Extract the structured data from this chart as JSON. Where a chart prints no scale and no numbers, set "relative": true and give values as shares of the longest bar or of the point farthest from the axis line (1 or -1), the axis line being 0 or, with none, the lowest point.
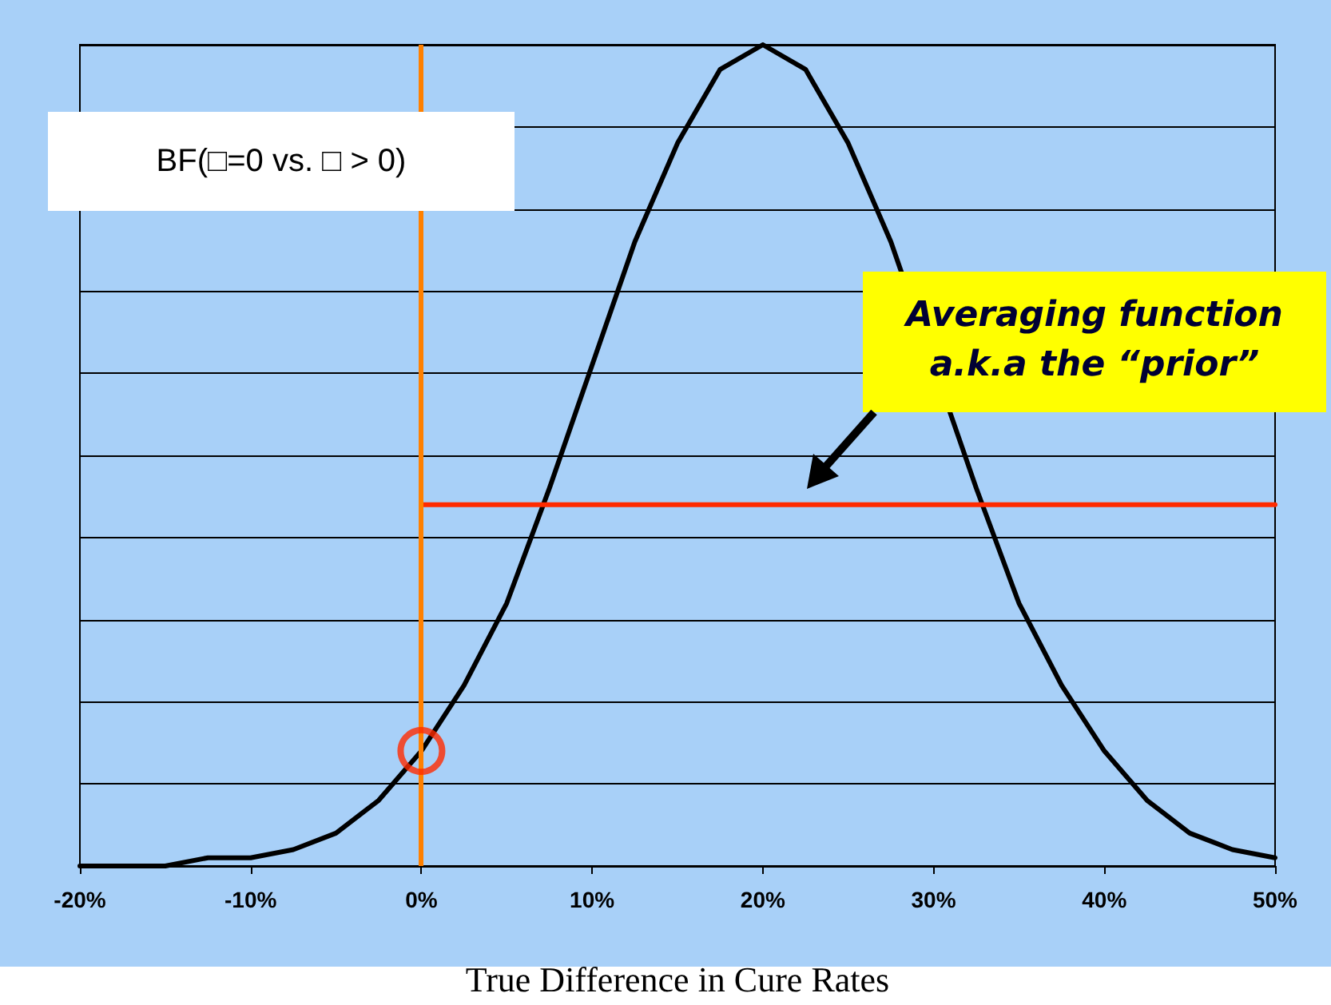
{
  "chart_data": {
    "type": "line",
    "relative": true,
    "xlabel": "True Difference in Cure Rates",
    "xlim": [
      -20,
      50
    ],
    "xticks": [
      {
        "value": -20,
        "label": "-20%"
      },
      {
        "value": -10,
        "label": "-10%"
      },
      {
        "value": 0,
        "label": "0%"
      },
      {
        "value": 10,
        "label": "10%"
      },
      {
        "value": 20,
        "label": "20%"
      },
      {
        "value": 30,
        "label": "30%"
      },
      {
        "value": 40,
        "label": "40%"
      },
      {
        "value": 50,
        "label": "50%"
      }
    ],
    "grid": "y",
    "marker": "none",
    "line_style": "solid",
    "annotations": [
      "BF(□=0 vs. □ > 0)",
      "Averaging function\na.k.a the “prior”"
    ],
    "ref_lines": [
      {
        "axis": "x",
        "value": 0,
        "color": "#ff8000"
      }
    ],
    "series": [
      {
        "color": "#000000",
        "x": [
          -20,
          -17.5,
          -15,
          -12.5,
          -10,
          -7.5,
          -5,
          -2.5,
          0,
          2.5,
          5,
          7.5,
          10,
          12.5,
          15,
          17.5,
          20,
          22.5,
          25,
          27.5,
          30,
          32.5,
          35,
          37.5,
          40,
          42.5,
          45,
          47.5,
          50
        ],
        "values": [
          0.0,
          0.0,
          0.0,
          0.01,
          0.01,
          0.02,
          0.04,
          0.08,
          0.14,
          0.22,
          0.32,
          0.46,
          0.61,
          0.76,
          0.88,
          0.97,
          1,
          0.97,
          0.88,
          0.76,
          null,
          0.46,
          0.32,
          0.22,
          0.14,
          0.08,
          0.04,
          0.02,
          0.01
        ]
      },
      {
        "color": "#ff2a00",
        "x": [
          0,
          50
        ],
        "values": [
          0.44,
          0.44
        ]
      },
      {
        "type": "scatter",
        "color": "#ff2a00",
        "marker": "circle",
        "x": [
          0
        ],
        "values": [
          0.14
        ]
      }
    ]
  }
}
